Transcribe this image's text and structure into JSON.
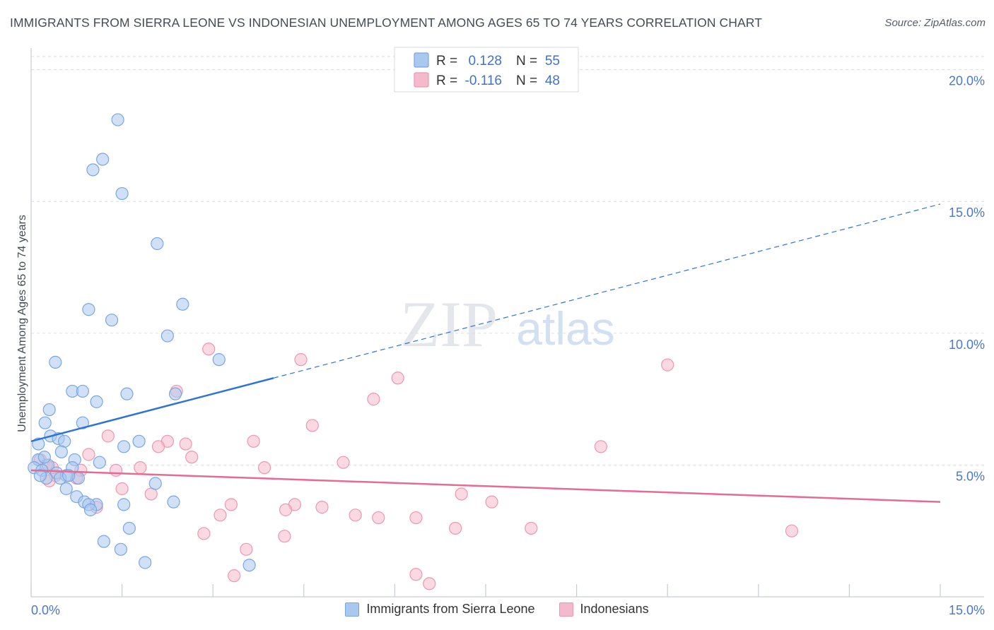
{
  "header": {
    "title": "IMMIGRANTS FROM SIERRA LEONE VS INDONESIAN UNEMPLOYMENT AMONG AGES 65 TO 74 YEARS CORRELATION CHART",
    "source": "Source: ZipAtlas.com"
  },
  "watermark": {
    "zip": "ZIP",
    "atlas": "atlas"
  },
  "colors": {
    "blue_fill": "#a9c8f0",
    "blue_stroke": "#7aa6e0",
    "blue_line": "#2f74d0",
    "pink_fill": "#f5b9cc",
    "pink_stroke": "#ec97b3",
    "pink_line": "#e56a94",
    "grid": "#d9dde3",
    "tick_text": "#4a78c6"
  },
  "legend": {
    "rows": [
      {
        "r_label": "R =",
        "r_value": "0.128",
        "n_label": "N =",
        "n_value": "55"
      },
      {
        "r_label": "R =",
        "r_value": "-0.116",
        "n_label": "N =",
        "n_value": "48"
      }
    ]
  },
  "bottom_legend": {
    "series1": "Immigrants from Sierra Leone",
    "series2": "Indonesians"
  },
  "chart_data": {
    "type": "scatter",
    "title": "IMMIGRANTS FROM SIERRA LEONE VS INDONESIAN UNEMPLOYMENT AMONG AGES 65 TO 74 YEARS CORRELATION CHART",
    "xlabel": "",
    "ylabel": "Unemployment Among Ages 65 to 74 years",
    "xlim": [
      0,
      15
    ],
    "ylim": [
      0,
      20.5
    ],
    "x_tick_labels": [
      "0.0%",
      "15.0%"
    ],
    "y_ticks": [
      5,
      10,
      15,
      20
    ],
    "y_tick_labels": [
      "5.0%",
      "10.0%",
      "15.0%",
      "20.0%"
    ],
    "series": [
      {
        "name": "Immigrants from Sierra Leone",
        "R": 0.128,
        "N": 55,
        "trend": {
          "x0": 0,
          "y0": 5.9,
          "x1": 15,
          "y1": 14.9,
          "solid_until": 4.0
        },
        "points": [
          [
            1.43,
            18.1
          ],
          [
            1.18,
            16.6
          ],
          [
            1.02,
            16.2
          ],
          [
            1.5,
            15.3
          ],
          [
            2.08,
            13.4
          ],
          [
            2.5,
            11.1
          ],
          [
            0.95,
            10.9
          ],
          [
            1.33,
            10.5
          ],
          [
            2.25,
            9.9
          ],
          [
            0.4,
            8.9
          ],
          [
            3.1,
            9.0
          ],
          [
            0.68,
            7.8
          ],
          [
            0.85,
            7.8
          ],
          [
            1.58,
            7.7
          ],
          [
            2.38,
            7.7
          ],
          [
            1.08,
            7.4
          ],
          [
            0.3,
            7.1
          ],
          [
            0.23,
            6.6
          ],
          [
            0.85,
            6.6
          ],
          [
            0.32,
            6.1
          ],
          [
            0.45,
            6.0
          ],
          [
            0.55,
            5.9
          ],
          [
            1.78,
            5.9
          ],
          [
            1.53,
            5.7
          ],
          [
            0.12,
            5.8
          ],
          [
            0.5,
            5.5
          ],
          [
            0.12,
            5.2
          ],
          [
            0.72,
            5.2
          ],
          [
            1.13,
            5.1
          ],
          [
            0.28,
            5.0
          ],
          [
            0.68,
            4.9
          ],
          [
            0.05,
            4.9
          ],
          [
            0.18,
            4.8
          ],
          [
            0.42,
            4.7
          ],
          [
            0.58,
            4.6
          ],
          [
            0.25,
            4.5
          ],
          [
            0.48,
            4.5
          ],
          [
            0.78,
            4.5
          ],
          [
            2.05,
            4.3
          ],
          [
            0.58,
            4.1
          ],
          [
            0.75,
            3.8
          ],
          [
            0.88,
            3.6
          ],
          [
            1.08,
            3.5
          ],
          [
            0.95,
            3.5
          ],
          [
            1.53,
            3.5
          ],
          [
            0.98,
            3.3
          ],
          [
            2.35,
            3.6
          ],
          [
            1.62,
            2.6
          ],
          [
            1.2,
            2.1
          ],
          [
            1.48,
            1.8
          ],
          [
            1.88,
            1.3
          ],
          [
            3.6,
            1.2
          ],
          [
            0.15,
            4.6
          ],
          [
            0.22,
            5.3
          ],
          [
            0.62,
            4.6
          ]
        ]
      },
      {
        "name": "Indonesians",
        "R": -0.116,
        "N": 48,
        "trend": {
          "x0": 0,
          "y0": 4.8,
          "x1": 15,
          "y1": 3.6
        },
        "points": [
          [
            2.93,
            9.4
          ],
          [
            4.45,
            9.0
          ],
          [
            10.5,
            8.8
          ],
          [
            6.05,
            8.3
          ],
          [
            2.4,
            7.8
          ],
          [
            5.65,
            7.5
          ],
          [
            4.64,
            6.5
          ],
          [
            1.27,
            6.1
          ],
          [
            3.67,
            5.9
          ],
          [
            2.25,
            5.9
          ],
          [
            9.4,
            5.7
          ],
          [
            2.55,
            5.8
          ],
          [
            2.1,
            5.7
          ],
          [
            0.95,
            5.4
          ],
          [
            2.65,
            5.3
          ],
          [
            5.15,
            5.1
          ],
          [
            3.85,
            4.9
          ],
          [
            1.4,
            4.8
          ],
          [
            1.8,
            4.9
          ],
          [
            0.82,
            4.8
          ],
          [
            0.4,
            4.6
          ],
          [
            0.75,
            4.5
          ],
          [
            0.3,
            4.4
          ],
          [
            1.5,
            4.1
          ],
          [
            1.98,
            3.9
          ],
          [
            7.1,
            3.9
          ],
          [
            3.3,
            3.5
          ],
          [
            4.35,
            3.5
          ],
          [
            4.8,
            3.4
          ],
          [
            4.2,
            3.3
          ],
          [
            7.6,
            3.6
          ],
          [
            3.12,
            3.1
          ],
          [
            5.35,
            3.1
          ],
          [
            5.73,
            3.0
          ],
          [
            6.35,
            3.0
          ],
          [
            1.08,
            3.4
          ],
          [
            2.85,
            2.4
          ],
          [
            4.18,
            2.3
          ],
          [
            7.0,
            2.6
          ],
          [
            8.25,
            2.6
          ],
          [
            12.55,
            2.5
          ],
          [
            3.55,
            1.8
          ],
          [
            3.35,
            0.8
          ],
          [
            6.35,
            0.85
          ],
          [
            6.57,
            0.5
          ],
          [
            0.15,
            5.2
          ],
          [
            0.35,
            4.9
          ],
          [
            0.25,
            5.0
          ]
        ]
      }
    ]
  }
}
